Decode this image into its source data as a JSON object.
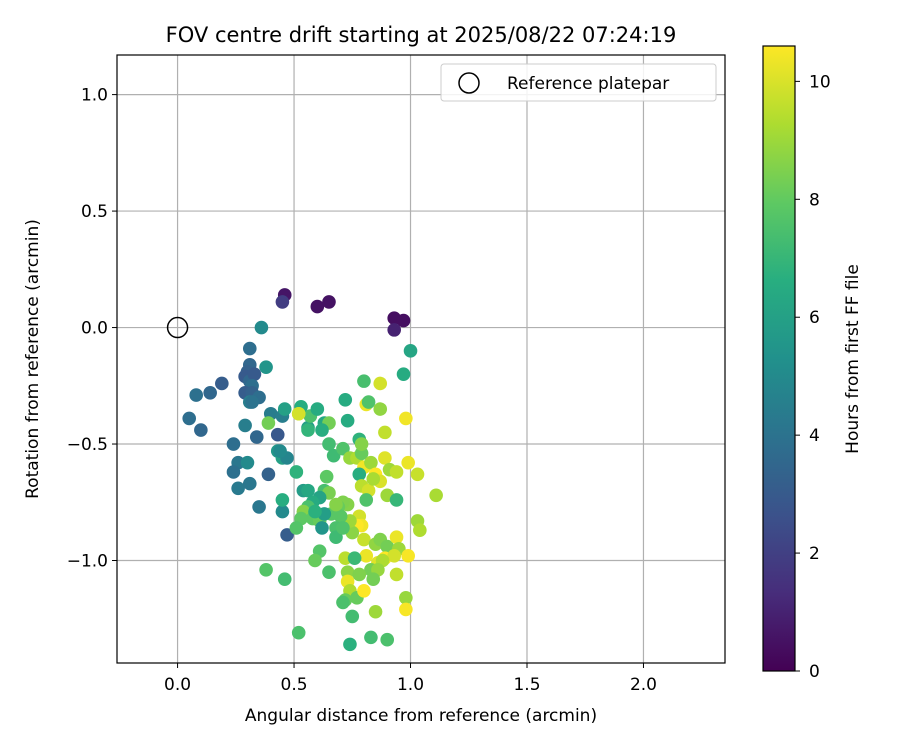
{
  "chart_data": {
    "type": "scatter",
    "title": "FOV centre drift starting at 2025/08/22 07:24:19",
    "xlabel": "Angular distance from reference (arcmin)",
    "ylabel": "Rotation from reference (arcmin)",
    "xlim": [
      -0.26,
      2.35
    ],
    "ylim": [
      -1.44,
      1.17
    ],
    "xticks": [
      0.0,
      0.5,
      1.0,
      1.5,
      2.0
    ],
    "xtick_labels": [
      "0.0",
      "0.5",
      "1.0",
      "1.5",
      "2.0"
    ],
    "yticks": [
      1.0,
      0.5,
      0.0,
      -0.5,
      -1.0
    ],
    "ytick_labels": [
      "1.0",
      "0.5",
      "0.0",
      "−0.5",
      "−1.0"
    ],
    "grid": true,
    "legend": {
      "placement": "top-right",
      "entries": [
        "Reference platepar"
      ]
    },
    "reference_point": {
      "x": 0.0,
      "y": 0.0
    },
    "colorbar": {
      "label": "Hours from first FF file",
      "colormap": "viridis",
      "range": [
        0,
        10.6
      ],
      "ticks": [
        0,
        2,
        4,
        6,
        8,
        10
      ],
      "tick_labels": [
        "0",
        "2",
        "4",
        "6",
        "8",
        "10"
      ]
    },
    "series": [
      {
        "columns": [
          "x",
          "y",
          "hours"
        ],
        "points": [
          [
            0.46,
            0.14,
            0.6
          ],
          [
            0.45,
            0.11,
            1.9
          ],
          [
            0.6,
            0.09,
            0.5
          ],
          [
            0.65,
            0.11,
            0.5
          ],
          [
            0.93,
            0.04,
            0.4
          ],
          [
            0.97,
            0.03,
            0.4
          ],
          [
            0.93,
            -0.01,
            1.0
          ],
          [
            0.36,
            0.0,
            5.0
          ],
          [
            1.0,
            -0.1,
            6.2
          ],
          [
            0.97,
            -0.2,
            6.5
          ],
          [
            0.31,
            -0.09,
            3.8
          ],
          [
            0.38,
            -0.17,
            5.5
          ],
          [
            0.31,
            -0.16,
            3.5
          ],
          [
            0.3,
            -0.19,
            3.3
          ],
          [
            0.29,
            -0.21,
            3.0
          ],
          [
            0.31,
            -0.23,
            3.5
          ],
          [
            0.33,
            -0.2,
            3.0
          ],
          [
            0.32,
            -0.25,
            3.8
          ],
          [
            0.19,
            -0.24,
            3.1
          ],
          [
            0.14,
            -0.28,
            3.5
          ],
          [
            0.08,
            -0.29,
            3.9
          ],
          [
            0.29,
            -0.28,
            3.1
          ],
          [
            0.32,
            -0.28,
            3.3
          ],
          [
            0.35,
            -0.3,
            3.8
          ],
          [
            0.31,
            -0.32,
            4.5
          ],
          [
            0.05,
            -0.39,
            3.8
          ],
          [
            0.1,
            -0.44,
            3.5
          ],
          [
            0.29,
            -0.42,
            4.5
          ],
          [
            0.34,
            -0.47,
            3.5
          ],
          [
            0.43,
            -0.46,
            2.9
          ],
          [
            0.24,
            -0.5,
            3.8
          ],
          [
            0.4,
            -0.37,
            4.4
          ],
          [
            0.45,
            -0.38,
            4.5
          ],
          [
            0.46,
            -0.35,
            6.0
          ],
          [
            0.26,
            -0.58,
            4.2
          ],
          [
            0.3,
            -0.58,
            5.0
          ],
          [
            0.24,
            -0.62,
            3.9
          ],
          [
            0.39,
            -0.63,
            3.3
          ],
          [
            0.26,
            -0.69,
            4.3
          ],
          [
            0.31,
            -0.67,
            4.2
          ],
          [
            0.35,
            -0.77,
            4.2
          ],
          [
            0.43,
            -0.53,
            5.6
          ],
          [
            0.45,
            -0.56,
            6.0
          ],
          [
            0.47,
            -0.56,
            4.8
          ],
          [
            0.44,
            -0.53,
            5.0
          ],
          [
            0.45,
            -0.79,
            5.0
          ],
          [
            0.47,
            -0.89,
            3.1
          ],
          [
            0.45,
            -0.74,
            6.6
          ],
          [
            0.51,
            -0.62,
            6.8
          ],
          [
            0.54,
            -0.7,
            5.8
          ],
          [
            0.56,
            -0.43,
            6.0
          ],
          [
            0.57,
            -0.38,
            7.5
          ],
          [
            0.53,
            -0.34,
            6.6
          ],
          [
            0.52,
            -0.37,
            9.2
          ],
          [
            0.56,
            -0.44,
            6.9
          ],
          [
            0.6,
            -0.35,
            6.5
          ],
          [
            0.63,
            -0.41,
            6.3
          ],
          [
            0.65,
            -0.41,
            8.3
          ],
          [
            0.62,
            -0.44,
            6.6
          ],
          [
            0.65,
            -0.5,
            7.3
          ],
          [
            0.67,
            -0.55,
            7.2
          ],
          [
            0.72,
            -0.31,
            6.5
          ],
          [
            0.73,
            -0.4,
            6.5
          ],
          [
            0.71,
            -0.52,
            7.6
          ],
          [
            0.74,
            -0.56,
            8.9
          ],
          [
            0.77,
            -0.56,
            9.3
          ],
          [
            0.79,
            -0.54,
            8.1
          ],
          [
            0.78,
            -0.48,
            6.8
          ],
          [
            0.79,
            -0.5,
            8.6
          ],
          [
            0.8,
            -0.23,
            7.4
          ],
          [
            0.81,
            -0.33,
            10.3
          ],
          [
            0.82,
            -0.32,
            7.6
          ],
          [
            0.87,
            -0.24,
            9.9
          ],
          [
            0.87,
            -0.35,
            8.8
          ],
          [
            0.89,
            -0.45,
            9.6
          ],
          [
            0.89,
            -0.56,
            10.1
          ],
          [
            0.91,
            -0.61,
            9.0
          ],
          [
            0.94,
            -0.62,
            9.6
          ],
          [
            0.98,
            -0.39,
            10.4
          ],
          [
            0.99,
            -0.58,
            10.3
          ],
          [
            1.03,
            -0.63,
            9.7
          ],
          [
            1.11,
            -0.72,
            9.2
          ],
          [
            0.8,
            -0.6,
            10.4
          ],
          [
            0.83,
            -0.58,
            9.0
          ],
          [
            0.85,
            -0.63,
            10.6
          ],
          [
            0.87,
            -0.66,
            10.0
          ],
          [
            0.78,
            -0.63,
            6.6
          ],
          [
            0.79,
            -0.68,
            9.5
          ],
          [
            0.82,
            -0.7,
            9.9
          ],
          [
            0.84,
            -0.65,
            9.2
          ],
          [
            0.9,
            -0.72,
            9.0
          ],
          [
            0.94,
            -0.74,
            7.0
          ],
          [
            0.81,
            -0.74,
            7.6
          ],
          [
            0.78,
            -0.81,
            9.9
          ],
          [
            0.79,
            -0.85,
            10.4
          ],
          [
            0.77,
            -0.85,
            10.6
          ],
          [
            0.8,
            -0.91,
            9.7
          ],
          [
            0.85,
            -0.93,
            8.8
          ],
          [
            0.87,
            -0.91,
            8.5
          ],
          [
            0.9,
            -0.94,
            8.3
          ],
          [
            0.94,
            -0.9,
            10.3
          ],
          [
            0.95,
            -0.95,
            9.0
          ],
          [
            1.03,
            -0.83,
            9.0
          ],
          [
            1.04,
            -0.87,
            9.3
          ],
          [
            0.89,
            -0.99,
            10.6
          ],
          [
            0.93,
            -0.98,
            9.9
          ],
          [
            0.99,
            -0.98,
            10.5
          ],
          [
            0.81,
            -0.98,
            10.3
          ],
          [
            0.86,
            -1.01,
            10.1
          ],
          [
            0.88,
            -1.0,
            9.3
          ],
          [
            0.83,
            -1.04,
            8.3
          ],
          [
            0.86,
            -1.04,
            8.9
          ],
          [
            0.94,
            -1.06,
            9.6
          ],
          [
            0.98,
            -1.16,
            8.9
          ],
          [
            0.98,
            -1.21,
            10.5
          ],
          [
            0.75,
            -0.88,
            8.7
          ],
          [
            0.74,
            -0.83,
            9.0
          ],
          [
            0.73,
            -0.76,
            8.6
          ],
          [
            0.71,
            -0.75,
            8.5
          ],
          [
            0.69,
            -0.77,
            8.1
          ],
          [
            0.7,
            -0.81,
            7.8
          ],
          [
            0.68,
            -0.86,
            7.5
          ],
          [
            0.66,
            -0.8,
            7.8
          ],
          [
            0.68,
            -0.9,
            7.2
          ],
          [
            0.72,
            -0.99,
            9.5
          ],
          [
            0.73,
            -1.05,
            8.7
          ],
          [
            0.73,
            -1.09,
            10.3
          ],
          [
            0.74,
            -1.13,
            9.3
          ],
          [
            0.76,
            -0.99,
            7.1
          ],
          [
            0.78,
            -1.06,
            8.5
          ],
          [
            0.77,
            -1.16,
            8.1
          ],
          [
            0.8,
            -1.13,
            10.6
          ],
          [
            0.84,
            -1.08,
            8.3
          ],
          [
            0.72,
            -1.17,
            8.1
          ],
          [
            0.71,
            -1.18,
            7.5
          ],
          [
            0.75,
            -1.24,
            7.3
          ],
          [
            0.85,
            -1.22,
            9.0
          ],
          [
            0.83,
            -1.33,
            7.3
          ],
          [
            0.9,
            -1.34,
            7.5
          ],
          [
            0.74,
            -1.36,
            6.7
          ],
          [
            0.65,
            -1.05,
            7.5
          ],
          [
            0.63,
            -0.7,
            7.4
          ],
          [
            0.64,
            -0.64,
            7.9
          ],
          [
            0.65,
            -0.71,
            8.4
          ],
          [
            0.68,
            -0.76,
            8.6
          ],
          [
            0.61,
            -0.73,
            6.1
          ],
          [
            0.58,
            -0.75,
            6.5
          ],
          [
            0.56,
            -0.77,
            7.5
          ],
          [
            0.54,
            -0.79,
            8.6
          ],
          [
            0.53,
            -0.82,
            7.9
          ],
          [
            0.51,
            -0.86,
            7.7
          ],
          [
            0.58,
            -0.82,
            7.9
          ],
          [
            0.61,
            -0.83,
            8.1
          ],
          [
            0.63,
            -0.8,
            5.9
          ],
          [
            0.59,
            -0.79,
            6.7
          ],
          [
            0.61,
            -0.96,
            7.7
          ],
          [
            0.59,
            -1.0,
            8.1
          ],
          [
            0.52,
            -1.31,
            7.5
          ],
          [
            0.46,
            -1.08,
            7.3
          ],
          [
            0.38,
            -1.04,
            7.7
          ],
          [
            0.52,
            -0.37,
            9.9
          ],
          [
            0.39,
            -0.41,
            8.3
          ],
          [
            0.32,
            -0.32,
            4.0
          ],
          [
            0.56,
            -0.7,
            6.3
          ],
          [
            0.62,
            -0.86,
            5.5
          ],
          [
            0.71,
            -0.86,
            7.6
          ]
        ]
      }
    ]
  }
}
